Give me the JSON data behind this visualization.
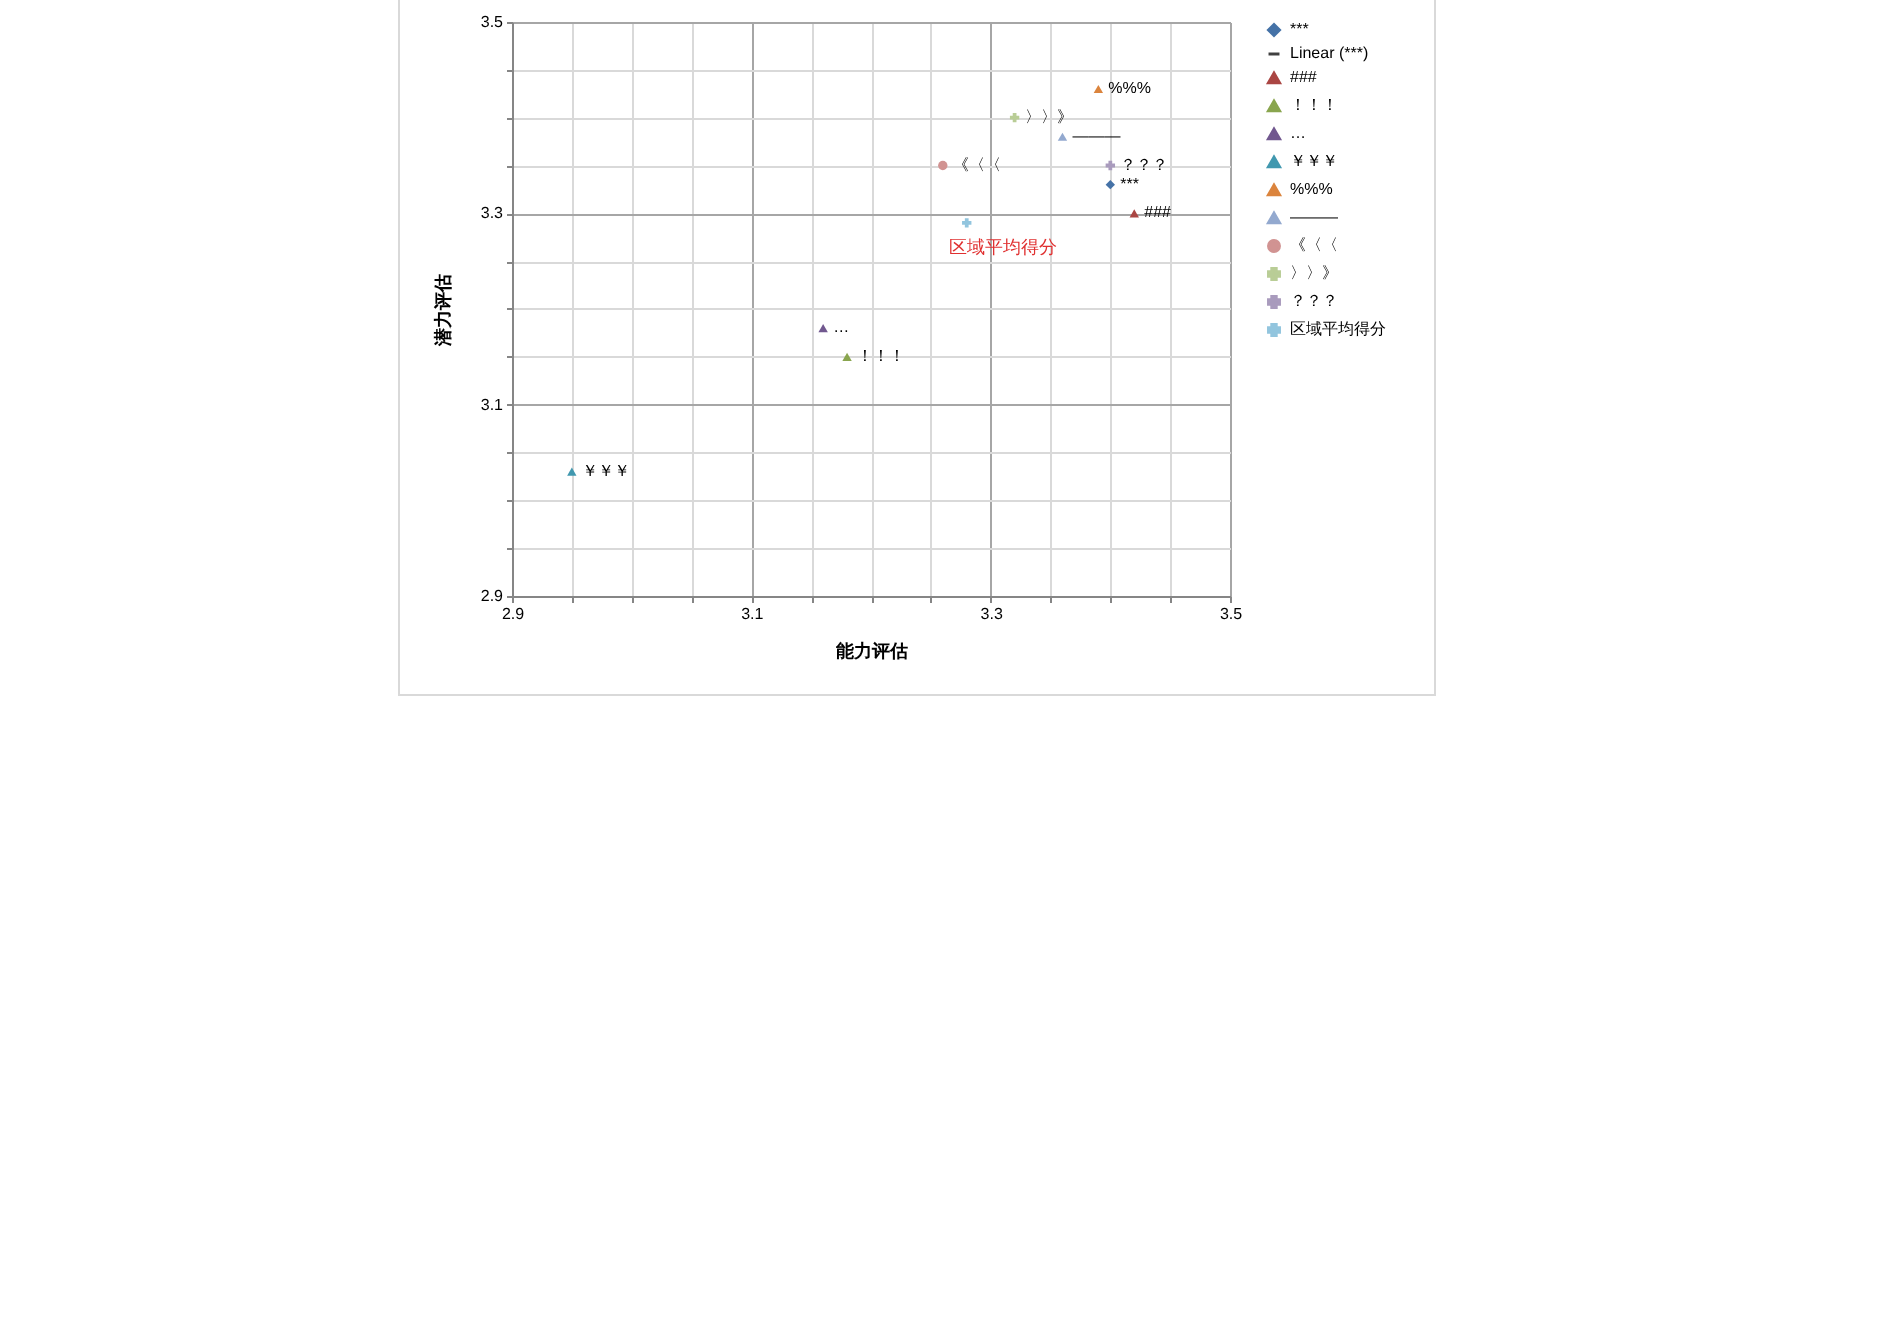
{
  "chart_data": {
    "type": "scatter",
    "xlabel": "能力评估",
    "ylabel": "潜力评估",
    "xlim": [
      2.9,
      3.5
    ],
    "ylim": [
      2.9,
      3.5
    ],
    "xticks": [
      2.9,
      {
        "value": 2.95,
        "label": null
      },
      {
        "value": 3.0,
        "label": null
      },
      {
        "value": 3.05,
        "label": null
      },
      3.1,
      {
        "value": 3.15,
        "label": null
      },
      {
        "value": 3.2,
        "label": null
      },
      {
        "value": 3.25,
        "label": null
      },
      3.3,
      {
        "value": 3.35,
        "label": null
      },
      {
        "value": 3.4,
        "label": null
      },
      {
        "value": 3.45,
        "label": null
      },
      3.5
    ],
    "yticks": [
      2.9,
      {
        "value": 2.95,
        "label": null
      },
      {
        "value": 3.0,
        "label": null
      },
      {
        "value": 3.05,
        "label": null
      },
      3.1,
      {
        "value": 3.15,
        "label": null
      },
      {
        "value": 3.2,
        "label": null
      },
      {
        "value": 3.25,
        "label": null
      },
      3.3,
      {
        "value": 3.35,
        "label": null
      },
      {
        "value": 3.4,
        "label": null
      },
      {
        "value": 3.45,
        "label": null
      },
      3.5
    ],
    "grid": true,
    "legend": "right",
    "annotations": [
      {
        "text": "区域平均得分",
        "x": 3.28,
        "y": 3.29
      }
    ],
    "series": [
      {
        "name": "***",
        "color": "#4572a7",
        "marker": "diamond",
        "x": [
          3.4
        ],
        "values": [
          3.33
        ]
      },
      {
        "name": "Linear (***)",
        "type": "line",
        "color": "#404040"
      },
      {
        "name": "###",
        "color": "#aa4643",
        "marker": "triangle",
        "x": [
          3.42
        ],
        "values": [
          3.3
        ]
      },
      {
        "name": "！！！",
        "color": "#89a54e",
        "marker": "triangle",
        "x": [
          3.18
        ],
        "values": [
          3.15
        ]
      },
      {
        "name": "…",
        "color": "#71588f",
        "marker": "triangle",
        "x": [
          3.16
        ],
        "values": [
          3.18
        ]
      },
      {
        "name": "￥￥￥",
        "color": "#4198af",
        "marker": "triangle",
        "x": [
          2.95
        ],
        "values": [
          3.03
        ]
      },
      {
        "name": "%%%",
        "color": "#db843d",
        "marker": "triangle",
        "x": [
          3.39
        ],
        "values": [
          3.43
        ]
      },
      {
        "name": "———",
        "color": "#93a9cf",
        "marker": "triangle",
        "x": [
          3.36
        ],
        "values": [
          3.38
        ]
      },
      {
        "name": "《〈〈",
        "color": "#d19392",
        "marker": "circle",
        "x": [
          3.26
        ],
        "values": [
          3.35
        ]
      },
      {
        "name": "〉〉》",
        "color": "#b9cd96",
        "marker": "cross",
        "x": [
          3.32
        ],
        "values": [
          3.4
        ]
      },
      {
        "name": "？？？",
        "color": "#a99bbd",
        "marker": "cross",
        "x": [
          3.4
        ],
        "values": [
          3.35
        ]
      },
      {
        "name": "区域平均得分",
        "color": "#92c5de",
        "marker": "cross",
        "x": [
          3.28
        ],
        "values": [
          3.29
        ]
      }
    ]
  }
}
